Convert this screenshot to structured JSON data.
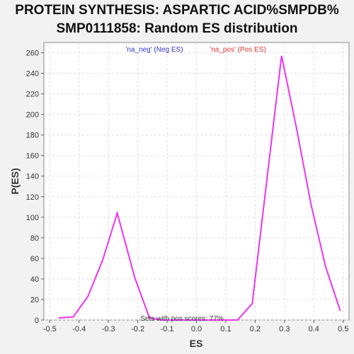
{
  "title_line1": "PROTEIN SYNTHESIS: ASPARTIC ACID%SMPDB%",
  "title_line2": "SMP0111858: Random ES distribution",
  "colors": {
    "neg": "#3333cc",
    "pos": "#e03333",
    "line": "#ee33ee",
    "note": "#333333"
  },
  "chart_data": {
    "type": "line",
    "xlabel": "ES",
    "ylabel": "P(ES)",
    "xlim": [
      -0.52,
      0.52
    ],
    "ylim": [
      0,
      270
    ],
    "x_ticks": [
      -0.5,
      -0.4,
      -0.3,
      -0.2,
      -0.1,
      0.0,
      0.1,
      0.2,
      0.3,
      0.4,
      0.5
    ],
    "y_ticks": [
      0,
      20,
      40,
      60,
      80,
      100,
      120,
      140,
      160,
      180,
      200,
      220,
      240,
      260
    ],
    "grid": true,
    "legend": [
      {
        "label": "'na_neg' (Neg ES)",
        "color": "#3333cc"
      },
      {
        "label": "'na_pos' (Pos ES)",
        "color": "#e03333"
      }
    ],
    "annotation": "Sets with pos scores: 77%",
    "series": [
      {
        "color": "#ee33ee",
        "x": [
          -0.47,
          -0.42,
          -0.37,
          -0.32,
          -0.27,
          -0.21,
          -0.16,
          -0.12,
          0.14,
          0.19,
          0.29,
          0.34,
          0.39,
          0.44,
          0.49
        ],
        "y": [
          2,
          3,
          23,
          58,
          104,
          41,
          2,
          0,
          0,
          16,
          257,
          188,
          113,
          52,
          9
        ]
      }
    ]
  }
}
